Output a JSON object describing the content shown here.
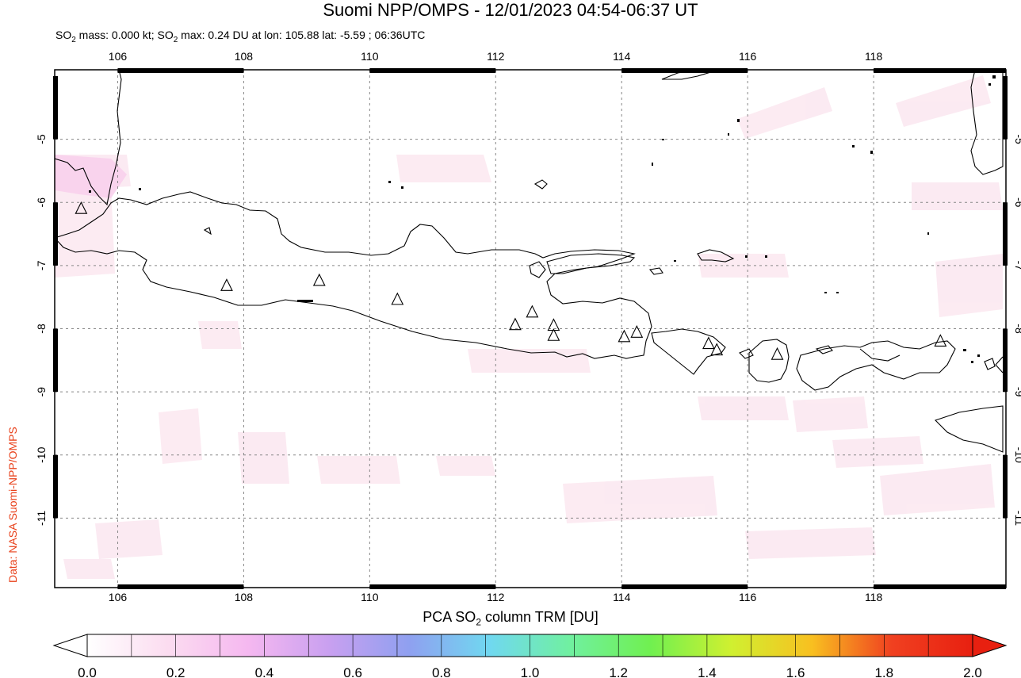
{
  "title": "Suomi NPP/OMPS - 12/01/2023 04:54-06:37 UT",
  "subtitle": {
    "prefix": "SO",
    "sub": "2",
    "mid": " mass: 0.000 kt; SO",
    "sub2": "2",
    "rest": " max: 0.24 DU at lon: 105.88 lat: -5.59 ; 06:36UTC"
  },
  "side_credit": "Data: NASA Suomi-NPP/OMPS",
  "map": {
    "lon_range": [
      105.0,
      120.1
    ],
    "lat_range": [
      -12.1,
      -3.9
    ],
    "lon_ticks": [
      "106",
      "108",
      "110",
      "112",
      "114",
      "116",
      "118"
    ],
    "lon_values": [
      106,
      108,
      110,
      112,
      114,
      116,
      118
    ],
    "lat_ticks": [
      "-5",
      "-6",
      "-7",
      "-8",
      "-9",
      "-10",
      "-11"
    ],
    "lat_values": [
      -5,
      -6,
      -7,
      -8,
      -9,
      -10,
      -11
    ],
    "volcanoes": [
      {
        "lon": 105.42,
        "lat": -6.1
      },
      {
        "lon": 107.73,
        "lat": -7.32
      },
      {
        "lon": 109.2,
        "lat": -7.24
      },
      {
        "lon": 110.44,
        "lat": -7.54
      },
      {
        "lon": 112.31,
        "lat": -7.94
      },
      {
        "lon": 112.58,
        "lat": -7.74
      },
      {
        "lon": 112.92,
        "lat": -7.95
      },
      {
        "lon": 112.92,
        "lat": -8.11
      },
      {
        "lon": 114.04,
        "lat": -8.13
      },
      {
        "lon": 114.24,
        "lat": -8.06
      },
      {
        "lon": 115.38,
        "lat": -8.24
      },
      {
        "lon": 115.51,
        "lat": -8.34
      },
      {
        "lon": 116.47,
        "lat": -8.41
      },
      {
        "lon": 119.06,
        "lat": -8.2
      }
    ]
  },
  "colorbar": {
    "label_prefix": "PCA SO",
    "label_sub": "2",
    "label_rest": " column TRM [DU]",
    "ticks": [
      "0.0",
      "0.2",
      "0.4",
      "0.6",
      "0.8",
      "1.0",
      "1.2",
      "1.4",
      "1.6",
      "1.8",
      "2.0"
    ],
    "colors": [
      "#ffffff",
      "#fbdcf0",
      "#f5b8f0",
      "#c9a0f0",
      "#8fa0f0",
      "#70d8f0",
      "#70f0a0",
      "#70f050",
      "#d0f030",
      "#f8c020",
      "#f04020",
      "#e82010"
    ]
  }
}
